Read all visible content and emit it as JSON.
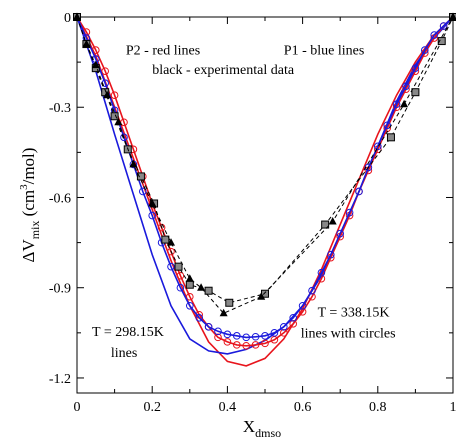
{
  "chart_data": {
    "type": "line",
    "title": "",
    "xlabel": {
      "main": "X",
      "sub": "dmso"
    },
    "ylabel": {
      "prefix": "ΔV",
      "sub": "mix",
      "mid": " (cm",
      "sup": "3",
      "suffix": "/mol)"
    },
    "xlim": [
      0,
      1
    ],
    "ylim": [
      -1.25,
      0
    ],
    "x_ticks": [
      0,
      0.2,
      0.4,
      0.6,
      0.8,
      1
    ],
    "x_tick_labels": [
      "0",
      "0.2",
      "0.4",
      "0.6",
      "0.8",
      "1"
    ],
    "y_ticks": [
      0,
      -0.3,
      -0.6,
      -0.9,
      -1.2
    ],
    "y_tick_labels": [
      "0",
      "-0.3",
      "-0.6",
      "-0.9",
      "-1.2"
    ],
    "grid": false,
    "colors": {
      "red": "#e8141c",
      "blue": "#1a1adc",
      "black": "#000000"
    },
    "annotations": [
      {
        "text": "P2 - red lines",
        "x": 0.13,
        "y": -0.125
      },
      {
        "text": "P1 - blue lines",
        "x": 0.55,
        "y": -0.125
      },
      {
        "text": "black - experimental data",
        "x": 0.2,
        "y": -0.19
      },
      {
        "text": "T = 338.15K",
        "x": 0.64,
        "y": -0.995
      },
      {
        "text": "lines with circles",
        "x": 0.595,
        "y": -1.065
      },
      {
        "text": "T = 298.15K",
        "x": 0.04,
        "y": -1.06
      },
      {
        "text": "lines",
        "x": 0.09,
        "y": -1.13
      }
    ],
    "series": [
      {
        "color": "red",
        "marker": "none",
        "dash": false,
        "x": [
          0,
          0.05,
          0.1,
          0.15,
          0.2,
          0.25,
          0.3,
          0.35,
          0.4,
          0.45,
          0.5,
          0.55,
          0.6,
          0.65,
          0.7,
          0.75,
          0.8,
          0.85,
          0.9,
          0.95,
          1
        ],
        "y": [
          0,
          -0.13,
          -0.3,
          -0.47,
          -0.64,
          -0.81,
          -0.96,
          -1.08,
          -1.145,
          -1.16,
          -1.135,
          -1.07,
          -0.97,
          -0.84,
          -0.69,
          -0.54,
          -0.39,
          -0.26,
          -0.15,
          -0.06,
          0
        ]
      },
      {
        "color": "blue",
        "marker": "none",
        "dash": false,
        "x": [
          0,
          0.05,
          0.1,
          0.15,
          0.2,
          0.25,
          0.3,
          0.35,
          0.4,
          0.45,
          0.5,
          0.55,
          0.6,
          0.65,
          0.7,
          0.75,
          0.8,
          0.85,
          0.9,
          0.95,
          1
        ],
        "y": [
          0,
          -0.18,
          -0.39,
          -0.59,
          -0.79,
          -0.96,
          -1.07,
          -1.11,
          -1.12,
          -1.105,
          -1.075,
          -1.03,
          -0.96,
          -0.86,
          -0.73,
          -0.58,
          -0.43,
          -0.28,
          -0.16,
          -0.07,
          0
        ]
      },
      {
        "color": "red",
        "marker": "circle",
        "dash": false,
        "x": [
          0,
          0.025,
          0.05,
          0.075,
          0.1,
          0.125,
          0.15,
          0.175,
          0.2,
          0.225,
          0.25,
          0.275,
          0.3,
          0.325,
          0.35,
          0.375,
          0.4,
          0.425,
          0.45,
          0.475,
          0.5,
          0.525,
          0.55,
          0.575,
          0.6,
          0.625,
          0.65,
          0.675,
          0.7,
          0.725,
          0.75,
          0.775,
          0.8,
          0.825,
          0.85,
          0.875,
          0.9,
          0.925,
          0.95,
          0.975,
          1
        ],
        "y": [
          0,
          -0.05,
          -0.11,
          -0.18,
          -0.26,
          -0.35,
          -0.44,
          -0.53,
          -0.62,
          -0.7,
          -0.78,
          -0.86,
          -0.93,
          -0.99,
          -1.03,
          -1.065,
          -1.08,
          -1.09,
          -1.093,
          -1.09,
          -1.085,
          -1.073,
          -1.05,
          -1.02,
          -0.98,
          -0.93,
          -0.87,
          -0.8,
          -0.73,
          -0.66,
          -0.58,
          -0.51,
          -0.44,
          -0.37,
          -0.3,
          -0.24,
          -0.18,
          -0.12,
          -0.07,
          -0.03,
          0
        ]
      },
      {
        "color": "blue",
        "marker": "circle",
        "dash": false,
        "x": [
          0,
          0.025,
          0.05,
          0.075,
          0.1,
          0.125,
          0.15,
          0.175,
          0.2,
          0.225,
          0.25,
          0.275,
          0.3,
          0.325,
          0.35,
          0.375,
          0.4,
          0.425,
          0.45,
          0.475,
          0.5,
          0.525,
          0.55,
          0.575,
          0.6,
          0.625,
          0.65,
          0.675,
          0.7,
          0.725,
          0.75,
          0.775,
          0.8,
          0.825,
          0.85,
          0.875,
          0.9,
          0.925,
          0.95,
          0.975,
          1
        ],
        "y": [
          0,
          -0.07,
          -0.14,
          -0.22,
          -0.31,
          -0.4,
          -0.49,
          -0.58,
          -0.66,
          -0.75,
          -0.83,
          -0.9,
          -0.96,
          -1.0,
          -1.03,
          -1.045,
          -1.055,
          -1.06,
          -1.065,
          -1.063,
          -1.06,
          -1.05,
          -1.03,
          -1.0,
          -0.96,
          -0.91,
          -0.85,
          -0.79,
          -0.72,
          -0.65,
          -0.58,
          -0.5,
          -0.43,
          -0.36,
          -0.29,
          -0.23,
          -0.17,
          -0.11,
          -0.06,
          -0.03,
          0
        ]
      },
      {
        "color": "black",
        "marker": "square",
        "dash": true,
        "x": [
          0,
          0.025,
          0.05,
          0.075,
          0.1,
          0.135,
          0.17,
          0.205,
          0.235,
          0.27,
          0.3,
          0.35,
          0.405,
          0.5,
          0.66,
          0.835,
          0.9,
          0.97,
          1
        ],
        "y": [
          0,
          -0.09,
          -0.17,
          -0.25,
          -0.33,
          -0.44,
          -0.53,
          -0.62,
          -0.74,
          -0.83,
          -0.89,
          -0.91,
          -0.95,
          -0.92,
          -0.69,
          -0.4,
          -0.25,
          -0.08,
          0
        ]
      },
      {
        "color": "black",
        "marker": "triangle",
        "dash": true,
        "x": [
          0,
          0.025,
          0.05,
          0.08,
          0.11,
          0.15,
          0.2,
          0.25,
          0.3,
          0.33,
          0.39,
          0.49,
          0.68,
          0.87,
          1
        ],
        "y": [
          0,
          -0.09,
          -0.16,
          -0.26,
          -0.35,
          -0.49,
          -0.62,
          -0.75,
          -0.87,
          -0.9,
          -0.985,
          -0.93,
          -0.68,
          -0.29,
          0
        ]
      }
    ]
  }
}
